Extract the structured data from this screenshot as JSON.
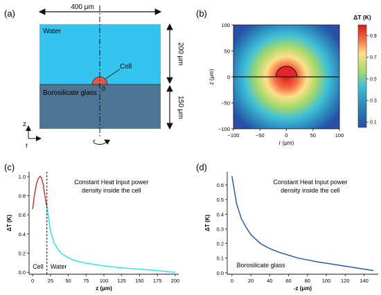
{
  "panel_a": {
    "label": "(a)",
    "width_label": "400 μm",
    "water_label": "Water",
    "glass_label": "Borosilicate glass",
    "cell_label": "Cell",
    "origin_label": "0",
    "water_height_label": "200 μm",
    "glass_height_label": "150 μm",
    "z_axis_label": "z",
    "r_axis_label": "r",
    "colors": {
      "water": "#33c4f0",
      "glass": "#4e7593",
      "cell": "#e05a47"
    }
  },
  "chart_data": [
    {
      "panel": "(b)",
      "type": "heatmap",
      "xlabel": "r (μm)",
      "ylabel": "z (μm)",
      "xlim": [
        -100,
        100
      ],
      "ylim": [
        -100,
        100
      ],
      "x_ticks": [
        "−100",
        "−50",
        "0",
        "50",
        "100"
      ],
      "y_ticks": [
        "100",
        "50",
        "0",
        "−50",
        "−100"
      ],
      "interface_z": 0,
      "cell_radius_um": 20,
      "colorbar": {
        "label": "ΔT (K)",
        "min": 0.05,
        "max": 1.0,
        "ticks": [
          "0.9",
          "0.7",
          "0.5",
          "0.3",
          "0.1"
        ]
      }
    },
    {
      "panel": "(c)",
      "type": "line",
      "xlabel": "z (μm)",
      "ylabel": "ΔT (K)",
      "xlim": [
        -5,
        205
      ],
      "ylim": [
        -0.02,
        1.05
      ],
      "x_ticks": [
        "0",
        "25",
        "50",
        "75",
        "100",
        "125",
        "150",
        "175",
        "200"
      ],
      "y_ticks": [
        "0.0",
        "0.2",
        "0.4",
        "0.6",
        "0.8",
        "1.0"
      ],
      "boundary_z": 20,
      "annotation": [
        "Constant Heat Input power",
        "density inside the cell"
      ],
      "region_labels": [
        "Cell",
        "Water"
      ],
      "series": [
        {
          "color": "#c0392b",
          "x": [
            0,
            1,
            2,
            3,
            4,
            5,
            6,
            7,
            8,
            9,
            10,
            11,
            12,
            13,
            14,
            15,
            16,
            17,
            18,
            19,
            20
          ],
          "y": [
            0.66,
            0.72,
            0.78,
            0.83,
            0.87,
            0.91,
            0.94,
            0.96,
            0.98,
            0.99,
            1.0,
            1.0,
            0.99,
            0.97,
            0.94,
            0.91,
            0.86,
            0.81,
            0.76,
            0.72,
            0.69
          ]
        },
        {
          "color": "#33e0ee",
          "x": [
            20,
            25,
            30,
            35,
            40,
            50,
            60,
            75,
            100,
            125,
            150,
            175,
            200
          ],
          "y": [
            0.69,
            0.43,
            0.31,
            0.245,
            0.2,
            0.15,
            0.12,
            0.095,
            0.067,
            0.048,
            0.033,
            0.018,
            0.0
          ]
        }
      ]
    },
    {
      "panel": "(d)",
      "type": "line",
      "xlabel": "-z (μm)",
      "ylabel": "ΔT (K)",
      "xlim": [
        -5,
        155
      ],
      "ylim": [
        -0.01,
        0.69
      ],
      "x_ticks": [
        "0",
        "20",
        "40",
        "60",
        "80",
        "100",
        "120",
        "140"
      ],
      "y_ticks": [
        "0.0",
        "0.1",
        "0.2",
        "0.3",
        "0.4",
        "0.5",
        "0.6"
      ],
      "annotation": [
        "Constant Heat Input power",
        "density inside the cell"
      ],
      "region_labels": [
        "Borosilicate glass"
      ],
      "series": [
        {
          "color": "#1f5fa8",
          "x": [
            0,
            5,
            10,
            15,
            20,
            30,
            40,
            50,
            60,
            70,
            80,
            90,
            100,
            110,
            120,
            130,
            140,
            150
          ],
          "y": [
            0.66,
            0.47,
            0.37,
            0.31,
            0.26,
            0.2,
            0.165,
            0.14,
            0.12,
            0.1,
            0.088,
            0.075,
            0.065,
            0.055,
            0.045,
            0.035,
            0.025,
            0.015
          ]
        }
      ]
    }
  ]
}
